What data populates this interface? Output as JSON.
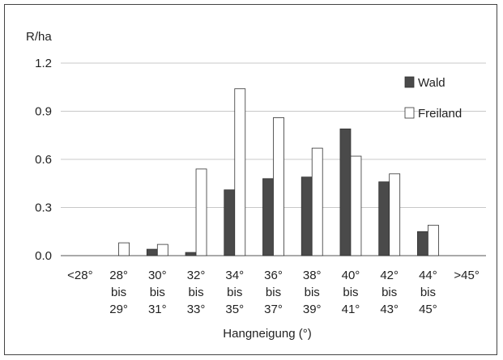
{
  "chart_data": {
    "type": "bar",
    "xlabel": "Hangneigung (°)",
    "ylabel": "R/ha",
    "ylim": [
      0,
      1.2
    ],
    "yticks": [
      "0.0",
      "0.3",
      "0.6",
      "0.9",
      "1.2"
    ],
    "grid": true,
    "legend_position": "top-right",
    "categories": [
      [
        "<28°"
      ],
      [
        "28°",
        "bis",
        "29°"
      ],
      [
        "30°",
        "bis",
        "31°"
      ],
      [
        "32°",
        "bis",
        "33°"
      ],
      [
        "34°",
        "bis",
        "35°"
      ],
      [
        "36°",
        "bis",
        "37°"
      ],
      [
        "38°",
        "bis",
        "39°"
      ],
      [
        "40°",
        "bis",
        "41°"
      ],
      [
        "42°",
        "bis",
        "43°"
      ],
      [
        "44°",
        "bis",
        "45°"
      ],
      [
        ">45°"
      ]
    ],
    "series": [
      {
        "name": "Wald",
        "color": "#4a4a4a",
        "values": [
          0,
          0,
          0.04,
          0.02,
          0.41,
          0.48,
          0.49,
          0.79,
          0.46,
          0.15,
          0
        ]
      },
      {
        "name": "Freiland",
        "color": "#ffffff",
        "values": [
          0,
          0.08,
          0.07,
          0.54,
          1.04,
          0.86,
          0.67,
          0.62,
          0.51,
          0.19,
          0
        ]
      }
    ]
  }
}
